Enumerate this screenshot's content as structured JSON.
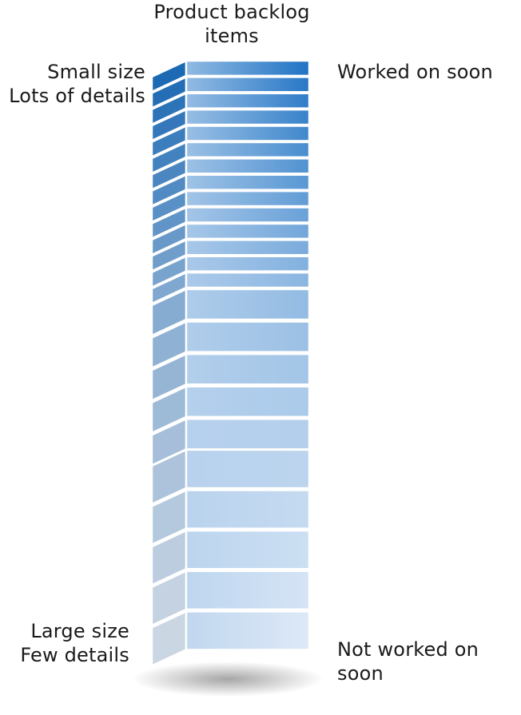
{
  "title": {
    "line1": "Product backlog",
    "line2": "items"
  },
  "left_top": {
    "line1": "Small size",
    "line2": "Lots of details"
  },
  "left_bottom": {
    "line1": "Large size",
    "line2": "Few details"
  },
  "right_top": "Worked on soon",
  "right_bottom": "Not worked on soon",
  "colors": {
    "top_item": "#1f73c4",
    "bottom_item": "#dde9f7",
    "divider": "#ffffff"
  },
  "items": {
    "small": 14,
    "medium": 5,
    "large": 5
  }
}
